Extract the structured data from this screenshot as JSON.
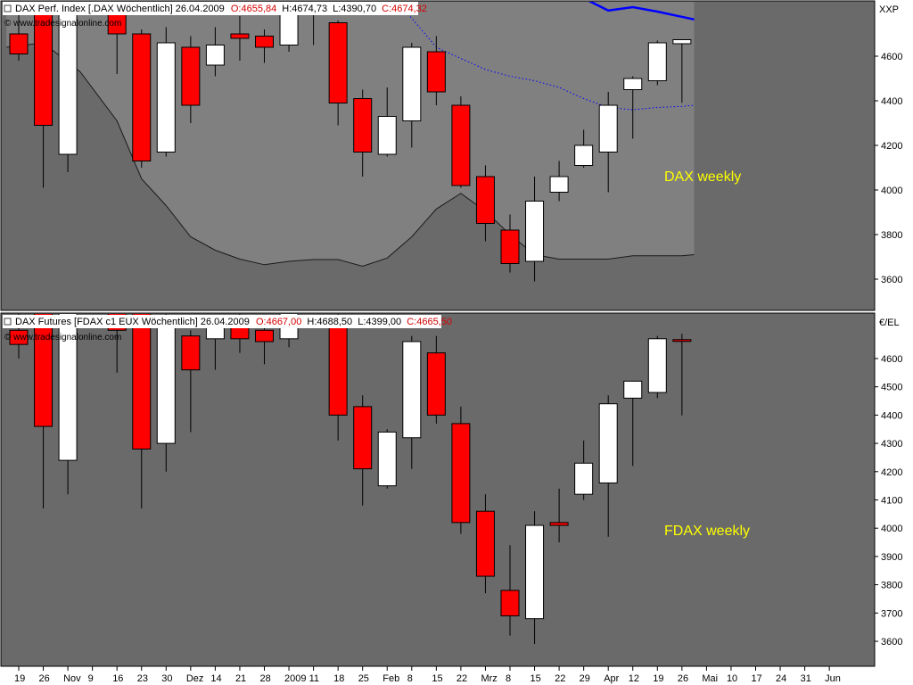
{
  "x_axis_labels": [
    "19",
    "26",
    "Nov",
    "9",
    "16",
    "23",
    "30",
    "Dez",
    "14",
    "21",
    "28",
    "2009",
    "11",
    "18",
    "25",
    "Feb",
    "8",
    "15",
    "22",
    "Mrz",
    "8",
    "15",
    "22",
    "29",
    "Apr",
    "12",
    "19",
    "26",
    "Mai",
    "10",
    "17",
    "24",
    "31",
    "Jun"
  ],
  "colors": {
    "background": "#6a6a6a",
    "band_fill": "#808080",
    "up_candle": "#ffffff",
    "down_candle": "#ff0000",
    "annotation": "#ffff00",
    "ma_line": "#0000ff"
  },
  "chart_data": [
    {
      "type": "candlestick",
      "header": {
        "name": "DAX Perf. Index [.DAX Wöchentlich] 26.04.2009",
        "open": "O:4655,84",
        "high": "H:4674,73",
        "low": "L:4390,70",
        "close": "C:4674,32"
      },
      "watermark": "© www.tradesignalonline.com",
      "unit_label": "XXP",
      "annotation": "DAX weekly",
      "y_ticks": [
        3600,
        3800,
        4000,
        4200,
        4400,
        4600
      ],
      "ylim": [
        3480,
        4880
      ],
      "candles": [
        {
          "x": 0,
          "o": 4700,
          "h": 4900,
          "l": 4580,
          "c": 4610
        },
        {
          "x": 1,
          "o": 4900,
          "h": 4950,
          "l": 4010,
          "c": 4290
        },
        {
          "x": 2,
          "o": 4160,
          "h": 4980,
          "l": 4080,
          "c": 4900
        },
        {
          "x": 4,
          "o": 4850,
          "h": 4950,
          "l": 4520,
          "c": 4700
        },
        {
          "x": 5,
          "o": 4700,
          "h": 4720,
          "l": 4100,
          "c": 4130
        },
        {
          "x": 6,
          "o": 4170,
          "h": 4730,
          "l": 4150,
          "c": 4660
        },
        {
          "x": 7,
          "o": 4640,
          "h": 4690,
          "l": 4300,
          "c": 4380
        },
        {
          "x": 8,
          "o": 4560,
          "h": 4730,
          "l": 4510,
          "c": 4650
        },
        {
          "x": 9,
          "o": 4700,
          "h": 4780,
          "l": 4580,
          "c": 4680
        },
        {
          "x": 10,
          "o": 4690,
          "h": 4720,
          "l": 4570,
          "c": 4640
        },
        {
          "x": 11,
          "o": 4650,
          "h": 4900,
          "l": 4620,
          "c": 4880
        },
        {
          "x": 12,
          "o": 4880,
          "h": 4940,
          "l": 4650,
          "c": 4850
        },
        {
          "x": 13,
          "o": 4750,
          "h": 4760,
          "l": 4290,
          "c": 4390
        },
        {
          "x": 14,
          "o": 4410,
          "h": 4450,
          "l": 4060,
          "c": 4170
        },
        {
          "x": 15,
          "o": 4160,
          "h": 4460,
          "l": 4150,
          "c": 4330
        },
        {
          "x": 16,
          "o": 4310,
          "h": 4660,
          "l": 4190,
          "c": 4640
        },
        {
          "x": 17,
          "o": 4620,
          "h": 4690,
          "l": 4380,
          "c": 4440
        },
        {
          "x": 18,
          "o": 4380,
          "h": 4420,
          "l": 4010,
          "c": 4020
        },
        {
          "x": 19,
          "o": 4060,
          "h": 4110,
          "l": 3770,
          "c": 3850
        },
        {
          "x": 20,
          "o": 3820,
          "h": 3890,
          "l": 3630,
          "c": 3670
        },
        {
          "x": 21,
          "o": 3680,
          "h": 4060,
          "l": 3590,
          "c": 3950
        },
        {
          "x": 22,
          "o": 3990,
          "h": 4130,
          "l": 3950,
          "c": 4060
        },
        {
          "x": 23,
          "o": 4110,
          "h": 4270,
          "l": 4100,
          "c": 4200
        },
        {
          "x": 24,
          "o": 4170,
          "h": 4440,
          "l": 3990,
          "c": 4380
        },
        {
          "x": 25,
          "o": 4450,
          "h": 4510,
          "l": 4230,
          "c": 4500
        },
        {
          "x": 26,
          "o": 4490,
          "h": 4670,
          "l": 4470,
          "c": 4660
        },
        {
          "x": 27,
          "o": 4656,
          "h": 4675,
          "l": 4391,
          "c": 4674
        }
      ],
      "band_lower": [
        {
          "x": -0.5,
          "y": 4640
        },
        {
          "x": 1,
          "y": 4660
        },
        {
          "x": 2.5,
          "y": 4530
        },
        {
          "x": 4,
          "y": 4310
        },
        {
          "x": 5,
          "y": 4050
        },
        {
          "x": 6,
          "y": 3930
        },
        {
          "x": 7,
          "y": 3790
        },
        {
          "x": 8,
          "y": 3730
        },
        {
          "x": 9,
          "y": 3690
        },
        {
          "x": 10,
          "y": 3665
        },
        {
          "x": 11,
          "y": 3680
        },
        {
          "x": 12,
          "y": 3688
        },
        {
          "x": 13,
          "y": 3688
        },
        {
          "x": 14,
          "y": 3658
        },
        {
          "x": 15,
          "y": 3695
        },
        {
          "x": 16,
          "y": 3790
        },
        {
          "x": 17,
          "y": 3915
        },
        {
          "x": 18,
          "y": 3985
        },
        {
          "x": 19,
          "y": 3905
        },
        {
          "x": 20,
          "y": 3800
        },
        {
          "x": 21,
          "y": 3710
        },
        {
          "x": 22,
          "y": 3690
        },
        {
          "x": 23,
          "y": 3690
        },
        {
          "x": 24,
          "y": 3690
        },
        {
          "x": 25,
          "y": 3705
        },
        {
          "x": 26,
          "y": 3705
        },
        {
          "x": 27,
          "y": 3705
        },
        {
          "x": 27.5,
          "y": 3710
        }
      ],
      "band_upper": [
        {
          "x": 15,
          "y": 4900
        },
        {
          "x": 17,
          "y": 4640
        },
        {
          "x": 18,
          "y": 4590
        },
        {
          "x": 19,
          "y": 4540
        },
        {
          "x": 20,
          "y": 4510
        },
        {
          "x": 21,
          "y": 4490
        },
        {
          "x": 22,
          "y": 4460
        },
        {
          "x": 23,
          "y": 4410
        },
        {
          "x": 24,
          "y": 4370
        },
        {
          "x": 25,
          "y": 4360
        },
        {
          "x": 26,
          "y": 4370
        },
        {
          "x": 27,
          "y": 4375
        },
        {
          "x": 27.5,
          "y": 4380
        }
      ],
      "ma_line": [
        {
          "x": 21,
          "y": 4885
        },
        {
          "x": 22,
          "y": 4890
        },
        {
          "x": 23,
          "y": 4860
        },
        {
          "x": 24,
          "y": 4805
        },
        {
          "x": 25,
          "y": 4820
        },
        {
          "x": 26,
          "y": 4800
        },
        {
          "x": 27.5,
          "y": 4765
        }
      ],
      "band_end_x": 27.5
    },
    {
      "type": "candlestick",
      "header": {
        "name": "DAX Futures [FDAX c1 EUX Wöchentlich] 26.04.2009",
        "open": "O:4667,00",
        "high": "H:4688,50",
        "low": "L:4399,00",
        "close": "C:4665,50"
      },
      "watermark": "© www.tradesignalonline.com",
      "unit_label": "€/EL",
      "annotation": "FDAX weekly",
      "y_ticks": [
        3600,
        3700,
        3800,
        3900,
        4000,
        4100,
        4200,
        4300,
        4400,
        4500,
        4600
      ],
      "ylim": [
        3520,
        4720
      ],
      "candles": [
        {
          "x": 0,
          "o": 4700,
          "h": 4800,
          "l": 4600,
          "c": 4650
        },
        {
          "x": 1,
          "o": 4800,
          "h": 4850,
          "l": 4070,
          "c": 4360
        },
        {
          "x": 2,
          "o": 4240,
          "h": 4900,
          "l": 4120,
          "c": 4850
        },
        {
          "x": 4,
          "o": 4800,
          "h": 4900,
          "l": 4550,
          "c": 4700
        },
        {
          "x": 5,
          "o": 4800,
          "h": 4850,
          "l": 4070,
          "c": 4280
        },
        {
          "x": 6,
          "o": 4300,
          "h": 4800,
          "l": 4200,
          "c": 4750
        },
        {
          "x": 7,
          "o": 4680,
          "h": 4700,
          "l": 4340,
          "c": 4560
        },
        {
          "x": 8,
          "o": 4670,
          "h": 4750,
          "l": 4560,
          "c": 4750
        },
        {
          "x": 9,
          "o": 4750,
          "h": 4800,
          "l": 4620,
          "c": 4670
        },
        {
          "x": 10,
          "o": 4700,
          "h": 4750,
          "l": 4580,
          "c": 4660
        },
        {
          "x": 11,
          "o": 4670,
          "h": 4800,
          "l": 4640,
          "c": 4780
        },
        {
          "x": 13,
          "o": 4750,
          "h": 4770,
          "l": 4310,
          "c": 4400
        },
        {
          "x": 14,
          "o": 4430,
          "h": 4470,
          "l": 4080,
          "c": 4210
        },
        {
          "x": 15,
          "o": 4150,
          "h": 4350,
          "l": 4140,
          "c": 4340
        },
        {
          "x": 16,
          "o": 4320,
          "h": 4680,
          "l": 4210,
          "c": 4660
        },
        {
          "x": 17,
          "o": 4620,
          "h": 4680,
          "l": 4370,
          "c": 4400
        },
        {
          "x": 18,
          "o": 4370,
          "h": 4430,
          "l": 3980,
          "c": 4020
        },
        {
          "x": 19,
          "o": 4060,
          "h": 4120,
          "l": 3770,
          "c": 3830
        },
        {
          "x": 20,
          "o": 3780,
          "h": 3940,
          "l": 3620,
          "c": 3690
        },
        {
          "x": 21,
          "o": 3680,
          "h": 4060,
          "l": 3590,
          "c": 4010
        },
        {
          "x": 22,
          "o": 4020,
          "h": 4140,
          "l": 3950,
          "c": 4010
        },
        {
          "x": 23,
          "o": 4120,
          "h": 4310,
          "l": 4100,
          "c": 4230
        },
        {
          "x": 24,
          "o": 4160,
          "h": 4470,
          "l": 3970,
          "c": 4440
        },
        {
          "x": 25,
          "o": 4460,
          "h": 4520,
          "l": 4220,
          "c": 4520
        },
        {
          "x": 26,
          "o": 4480,
          "h": 4680,
          "l": 4460,
          "c": 4670
        },
        {
          "x": 27,
          "o": 4667,
          "h": 4688,
          "l": 4399,
          "c": 4665
        }
      ]
    }
  ]
}
